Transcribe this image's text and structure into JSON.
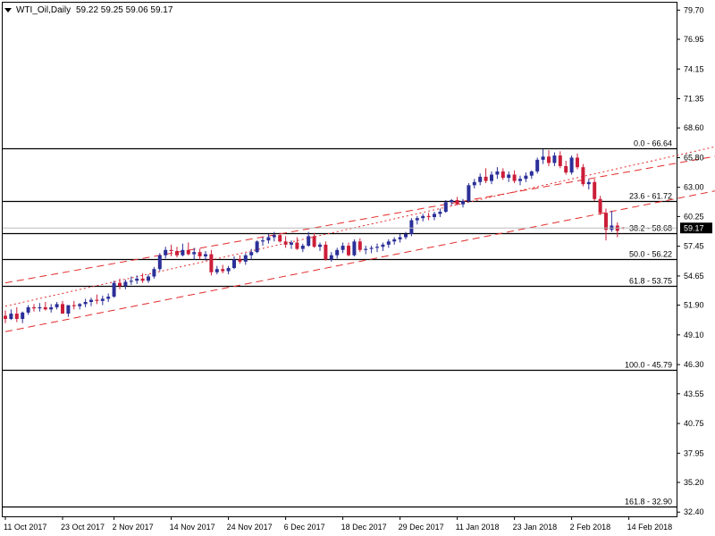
{
  "header": {
    "symbol": "WTI_Oil,Daily",
    "ohlc": "59.22 59.25 59.06 59.17"
  },
  "colors": {
    "bull": "#2b2f98",
    "bear": "#cc1e39",
    "channel": "#e32b2b",
    "fib": "#000000",
    "price_label_bg": "#000000"
  },
  "chart_data": {
    "type": "candlestick",
    "y_axis_ticks": [
      "79.70",
      "76.95",
      "74.15",
      "71.35",
      "68.60",
      "65.80",
      "63.00",
      "60.25",
      "57.45",
      "54.65",
      "51.90",
      "49.10",
      "46.30",
      "43.55",
      "40.75",
      "37.95",
      "35.20",
      "32.40"
    ],
    "x_axis_ticks": [
      "11 Oct 2017",
      "23 Oct 2017",
      "2 Nov 2017",
      "14 Nov 2017",
      "24 Nov 2017",
      "6 Dec 2017",
      "18 Dec 2017",
      "29 Dec 2017",
      "11 Jan 2018",
      "23 Jan 2018",
      "2 Feb 2018",
      "14 Feb 2018"
    ],
    "ylim": [
      32.0,
      80.4
    ],
    "last_price": "59.17",
    "fib_levels": [
      {
        "label": "0.0 - 66.64",
        "value": 66.64
      },
      {
        "label": "23.6 - 61.72",
        "value": 61.72
      },
      {
        "label": "38.2 - 58.68",
        "value": 58.68
      },
      {
        "label": "50.0 - 56.22",
        "value": 56.22
      },
      {
        "label": "61.8 - 53.75",
        "value": 53.75
      },
      {
        "label": "100.0 - 45.79",
        "value": 45.79
      },
      {
        "label": "161.8 - 32.90",
        "value": 32.9
      }
    ],
    "channel": [
      {
        "style": "dashed",
        "from": [
          0,
          54.0
        ],
        "to": [
          128,
          66.3
        ]
      },
      {
        "style": "dashed",
        "from": [
          0,
          49.4
        ],
        "to": [
          145,
          64.9
        ]
      },
      {
        "style": "dotted",
        "from": [
          0,
          51.8
        ],
        "to": [
          128,
          67.3
        ]
      }
    ],
    "candles": [
      {
        "o": 50.9,
        "h": 51.4,
        "l": 50.2,
        "c": 50.6
      },
      {
        "o": 50.6,
        "h": 51.5,
        "l": 50.5,
        "c": 51.1
      },
      {
        "o": 51.1,
        "h": 51.7,
        "l": 50.3,
        "c": 50.6
      },
      {
        "o": 50.6,
        "h": 51.3,
        "l": 50.2,
        "c": 51.2
      },
      {
        "o": 51.2,
        "h": 51.9,
        "l": 51.0,
        "c": 51.7
      },
      {
        "o": 51.7,
        "h": 52.0,
        "l": 51.3,
        "c": 51.6
      },
      {
        "o": 51.6,
        "h": 52.1,
        "l": 51.3,
        "c": 51.7
      },
      {
        "o": 51.7,
        "h": 52.2,
        "l": 51.4,
        "c": 51.5
      },
      {
        "o": 51.5,
        "h": 52.0,
        "l": 51.2,
        "c": 51.7
      },
      {
        "o": 51.7,
        "h": 52.2,
        "l": 51.5,
        "c": 52.0
      },
      {
        "o": 52.0,
        "h": 52.3,
        "l": 51.3,
        "c": 51.1
      },
      {
        "o": 51.1,
        "h": 51.9,
        "l": 50.8,
        "c": 51.9
      },
      {
        "o": 51.9,
        "h": 52.3,
        "l": 51.5,
        "c": 51.8
      },
      {
        "o": 51.8,
        "h": 52.1,
        "l": 51.5,
        "c": 52.0
      },
      {
        "o": 52.0,
        "h": 52.5,
        "l": 51.7,
        "c": 52.2
      },
      {
        "o": 52.2,
        "h": 52.6,
        "l": 51.8,
        "c": 52.4
      },
      {
        "o": 52.4,
        "h": 52.9,
        "l": 52.0,
        "c": 52.3
      },
      {
        "o": 52.3,
        "h": 52.8,
        "l": 51.9,
        "c": 52.5
      },
      {
        "o": 52.5,
        "h": 53.0,
        "l": 52.2,
        "c": 52.7
      },
      {
        "o": 52.7,
        "h": 54.2,
        "l": 52.6,
        "c": 54.0
      },
      {
        "o": 54.0,
        "h": 54.4,
        "l": 53.4,
        "c": 53.7
      },
      {
        "o": 53.7,
        "h": 54.3,
        "l": 53.4,
        "c": 54.1
      },
      {
        "o": 54.1,
        "h": 54.6,
        "l": 53.8,
        "c": 54.2
      },
      {
        "o": 54.2,
        "h": 54.7,
        "l": 53.9,
        "c": 54.4
      },
      {
        "o": 54.4,
        "h": 54.9,
        "l": 54.0,
        "c": 54.2
      },
      {
        "o": 54.2,
        "h": 54.8,
        "l": 54.0,
        "c": 54.6
      },
      {
        "o": 54.6,
        "h": 55.5,
        "l": 54.4,
        "c": 55.3
      },
      {
        "o": 55.3,
        "h": 56.8,
        "l": 55.1,
        "c": 56.6
      },
      {
        "o": 56.6,
        "h": 57.4,
        "l": 56.3,
        "c": 57.1
      },
      {
        "o": 57.1,
        "h": 57.6,
        "l": 56.5,
        "c": 57.0
      },
      {
        "o": 57.0,
        "h": 57.4,
        "l": 56.4,
        "c": 56.6
      },
      {
        "o": 56.6,
        "h": 57.7,
        "l": 56.5,
        "c": 57.1
      },
      {
        "o": 57.1,
        "h": 57.8,
        "l": 56.6,
        "c": 56.7
      },
      {
        "o": 56.7,
        "h": 57.3,
        "l": 56.2,
        "c": 56.9
      },
      {
        "o": 56.9,
        "h": 57.2,
        "l": 56.2,
        "c": 56.5
      },
      {
        "o": 56.5,
        "h": 57.0,
        "l": 56.1,
        "c": 56.7
      },
      {
        "o": 56.7,
        "h": 57.1,
        "l": 54.7,
        "c": 55.0
      },
      {
        "o": 55.0,
        "h": 55.6,
        "l": 54.8,
        "c": 55.3
      },
      {
        "o": 55.3,
        "h": 55.7,
        "l": 54.9,
        "c": 55.1
      },
      {
        "o": 55.1,
        "h": 55.6,
        "l": 54.8,
        "c": 55.4
      },
      {
        "o": 55.4,
        "h": 56.5,
        "l": 55.3,
        "c": 56.2
      },
      {
        "o": 56.2,
        "h": 56.6,
        "l": 55.8,
        "c": 56.0
      },
      {
        "o": 56.0,
        "h": 56.8,
        "l": 55.7,
        "c": 56.6
      },
      {
        "o": 56.6,
        "h": 57.2,
        "l": 56.2,
        "c": 56.9
      },
      {
        "o": 56.9,
        "h": 58.0,
        "l": 56.8,
        "c": 57.9
      },
      {
        "o": 57.9,
        "h": 58.3,
        "l": 57.5,
        "c": 58.0
      },
      {
        "o": 58.0,
        "h": 58.6,
        "l": 57.7,
        "c": 58.3
      },
      {
        "o": 58.3,
        "h": 58.8,
        "l": 57.9,
        "c": 58.5
      },
      {
        "o": 58.5,
        "h": 58.7,
        "l": 57.8,
        "c": 57.9
      },
      {
        "o": 57.9,
        "h": 58.4,
        "l": 57.3,
        "c": 57.6
      },
      {
        "o": 57.6,
        "h": 58.0,
        "l": 57.2,
        "c": 57.8
      },
      {
        "o": 57.8,
        "h": 58.3,
        "l": 57.1,
        "c": 57.2
      },
      {
        "o": 57.2,
        "h": 57.7,
        "l": 56.9,
        "c": 57.5
      },
      {
        "o": 57.5,
        "h": 58.8,
        "l": 57.4,
        "c": 58.4
      },
      {
        "o": 58.4,
        "h": 58.7,
        "l": 57.3,
        "c": 57.4
      },
      {
        "o": 57.4,
        "h": 57.8,
        "l": 57.0,
        "c": 57.6
      },
      {
        "o": 57.6,
        "h": 57.9,
        "l": 56.1,
        "c": 56.2
      },
      {
        "o": 56.2,
        "h": 56.9,
        "l": 56.0,
        "c": 56.6
      },
      {
        "o": 56.6,
        "h": 57.3,
        "l": 56.3,
        "c": 57.1
      },
      {
        "o": 57.1,
        "h": 57.8,
        "l": 56.8,
        "c": 57.5
      },
      {
        "o": 57.5,
        "h": 57.8,
        "l": 56.5,
        "c": 56.6
      },
      {
        "o": 56.6,
        "h": 58.1,
        "l": 56.5,
        "c": 57.9
      },
      {
        "o": 57.9,
        "h": 58.2,
        "l": 56.9,
        "c": 57.1
      },
      {
        "o": 57.1,
        "h": 57.5,
        "l": 56.7,
        "c": 57.2
      },
      {
        "o": 57.2,
        "h": 57.5,
        "l": 56.8,
        "c": 57.3
      },
      {
        "o": 57.3,
        "h": 57.7,
        "l": 56.9,
        "c": 57.4
      },
      {
        "o": 57.4,
        "h": 57.8,
        "l": 57.0,
        "c": 57.6
      },
      {
        "o": 57.6,
        "h": 58.1,
        "l": 57.3,
        "c": 57.9
      },
      {
        "o": 57.9,
        "h": 58.3,
        "l": 57.6,
        "c": 58.1
      },
      {
        "o": 58.1,
        "h": 58.6,
        "l": 57.8,
        "c": 58.3
      },
      {
        "o": 58.3,
        "h": 58.8,
        "l": 58.1,
        "c": 58.6
      },
      {
        "o": 58.6,
        "h": 60.1,
        "l": 58.4,
        "c": 59.9
      },
      {
        "o": 59.9,
        "h": 60.3,
        "l": 59.5,
        "c": 60.1
      },
      {
        "o": 60.1,
        "h": 60.5,
        "l": 59.8,
        "c": 60.3
      },
      {
        "o": 60.3,
        "h": 60.6,
        "l": 59.9,
        "c": 60.2
      },
      {
        "o": 60.2,
        "h": 60.7,
        "l": 59.9,
        "c": 60.5
      },
      {
        "o": 60.5,
        "h": 61.0,
        "l": 60.2,
        "c": 60.7
      },
      {
        "o": 60.7,
        "h": 61.8,
        "l": 60.6,
        "c": 61.6
      },
      {
        "o": 61.6,
        "h": 61.9,
        "l": 61.3,
        "c": 61.8
      },
      {
        "o": 61.8,
        "h": 62.1,
        "l": 61.3,
        "c": 61.4
      },
      {
        "o": 61.4,
        "h": 61.9,
        "l": 61.1,
        "c": 61.7
      },
      {
        "o": 61.7,
        "h": 63.4,
        "l": 61.6,
        "c": 63.2
      },
      {
        "o": 63.2,
        "h": 63.8,
        "l": 62.9,
        "c": 63.5
      },
      {
        "o": 63.5,
        "h": 64.3,
        "l": 63.2,
        "c": 64.0
      },
      {
        "o": 64.0,
        "h": 64.8,
        "l": 63.4,
        "c": 63.6
      },
      {
        "o": 63.6,
        "h": 64.5,
        "l": 63.3,
        "c": 64.2
      },
      {
        "o": 64.2,
        "h": 64.9,
        "l": 63.8,
        "c": 64.5
      },
      {
        "o": 64.5,
        "h": 64.8,
        "l": 63.7,
        "c": 63.9
      },
      {
        "o": 63.9,
        "h": 64.5,
        "l": 63.5,
        "c": 64.2
      },
      {
        "o": 64.2,
        "h": 64.6,
        "l": 63.4,
        "c": 63.6
      },
      {
        "o": 63.6,
        "h": 64.1,
        "l": 63.2,
        "c": 63.8
      },
      {
        "o": 63.8,
        "h": 64.4,
        "l": 63.5,
        "c": 64.1
      },
      {
        "o": 64.1,
        "h": 64.6,
        "l": 63.8,
        "c": 64.5
      },
      {
        "o": 64.5,
        "h": 65.8,
        "l": 64.3,
        "c": 65.6
      },
      {
        "o": 65.6,
        "h": 66.6,
        "l": 65.2,
        "c": 65.9
      },
      {
        "o": 65.9,
        "h": 66.5,
        "l": 65.0,
        "c": 65.3
      },
      {
        "o": 65.3,
        "h": 66.3,
        "l": 65.0,
        "c": 66.0
      },
      {
        "o": 66.0,
        "h": 66.4,
        "l": 64.8,
        "c": 65.0
      },
      {
        "o": 65.0,
        "h": 65.5,
        "l": 64.2,
        "c": 64.4
      },
      {
        "o": 64.4,
        "h": 66.0,
        "l": 64.2,
        "c": 65.8
      },
      {
        "o": 65.8,
        "h": 66.2,
        "l": 64.7,
        "c": 64.9
      },
      {
        "o": 64.9,
        "h": 65.2,
        "l": 63.1,
        "c": 63.3
      },
      {
        "o": 63.3,
        "h": 63.8,
        "l": 62.8,
        "c": 63.5
      },
      {
        "o": 63.5,
        "h": 63.8,
        "l": 61.7,
        "c": 61.9
      },
      {
        "o": 61.9,
        "h": 62.2,
        "l": 60.4,
        "c": 60.6
      },
      {
        "o": 60.6,
        "h": 61.0,
        "l": 58.0,
        "c": 59.0
      },
      {
        "o": 59.0,
        "h": 60.8,
        "l": 58.8,
        "c": 59.4
      },
      {
        "o": 59.4,
        "h": 59.7,
        "l": 58.3,
        "c": 58.9
      },
      {
        "o": 59.22,
        "h": 59.25,
        "l": 59.06,
        "c": 59.17
      }
    ]
  }
}
